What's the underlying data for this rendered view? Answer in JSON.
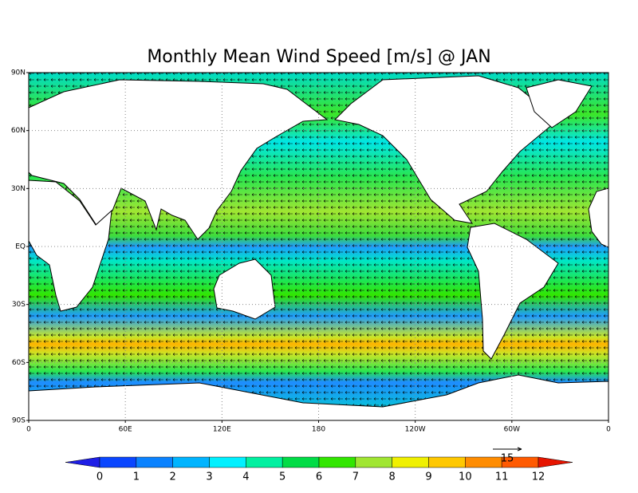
{
  "chart_data": {
    "type": "map",
    "title": "Monthly Mean Wind Speed [m/s] @ JAN",
    "xlim": [
      0,
      360
    ],
    "ylim": [
      -90,
      90
    ],
    "xticks": [
      0,
      {
        "value": 60,
        "label": "60E"
      },
      {
        "value": 120,
        "label": "120E"
      },
      180,
      {
        "value": 240,
        "label": "120W"
      },
      {
        "value": 300,
        "label": "60W"
      },
      {
        "value": 360,
        "label": "0"
      }
    ],
    "yticks": [
      {
        "value": 90,
        "label": "90N"
      },
      {
        "value": 60,
        "label": "60N"
      },
      {
        "value": 30,
        "label": "30N"
      },
      {
        "value": 0,
        "label": "EQ"
      },
      {
        "value": -30,
        "label": "30S"
      },
      {
        "value": -60,
        "label": "60S"
      },
      {
        "value": -90,
        "label": "90S"
      }
    ],
    "grid": true,
    "colorbar": {
      "levels": [
        0,
        1,
        2,
        3,
        4,
        5,
        6,
        7,
        8,
        9,
        10,
        11,
        12
      ],
      "colors": [
        "#1e1ee6",
        "#0a46ff",
        "#0a82ff",
        "#00b4ff",
        "#00f0ff",
        "#00f0a0",
        "#00dc46",
        "#32e600",
        "#a0e632",
        "#f0f000",
        "#ffc800",
        "#ff8c00",
        "#ff5a00",
        "#e61400"
      ]
    },
    "reference_vector": {
      "value": 15
    }
  }
}
